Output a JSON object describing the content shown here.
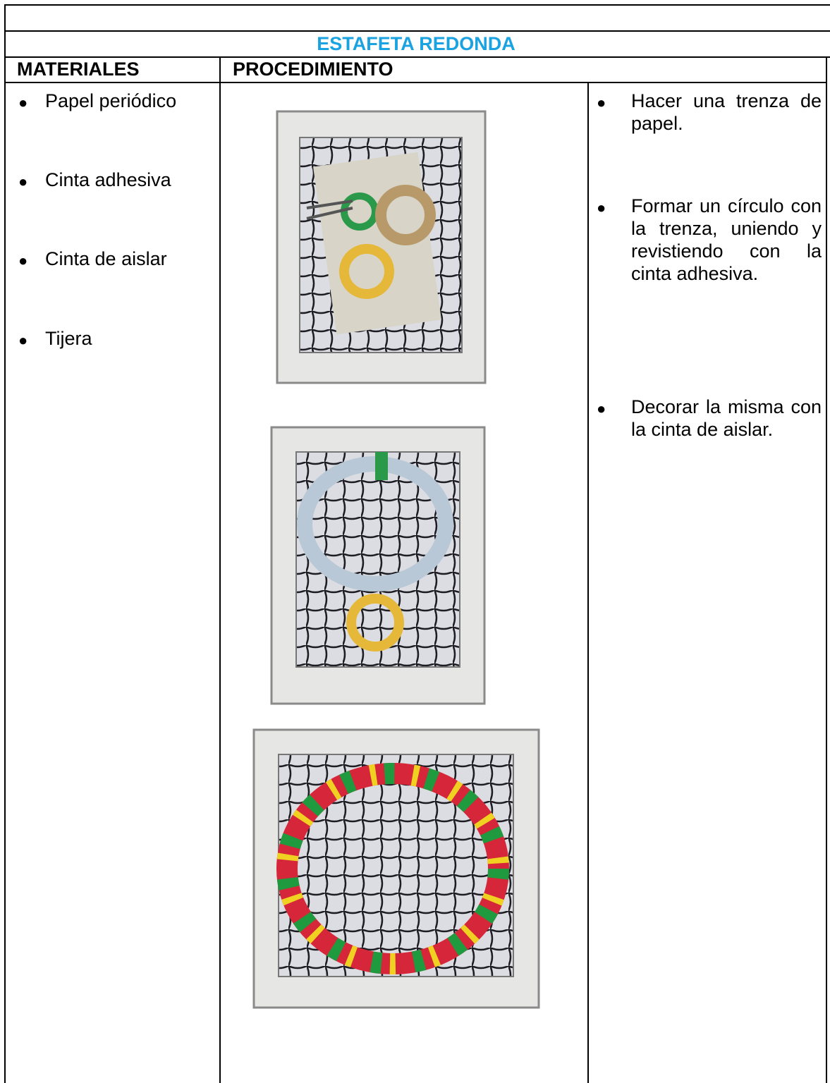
{
  "table": {
    "title": "ESTAFETA REDONDA",
    "headers": [
      "MATERIALES",
      "PROCEDIMIENTO"
    ],
    "materials": [
      "Papel periódico",
      "Cinta adhesiva",
      "Cinta de aislar",
      "Tijera"
    ],
    "steps": [
      "Hacer una trenza de papel.",
      "Formar un círculo con la trenza, uniendo y revistiendo con la cinta adhesiva.",
      "Decorar la misma con la cinta de aislar."
    ]
  }
}
